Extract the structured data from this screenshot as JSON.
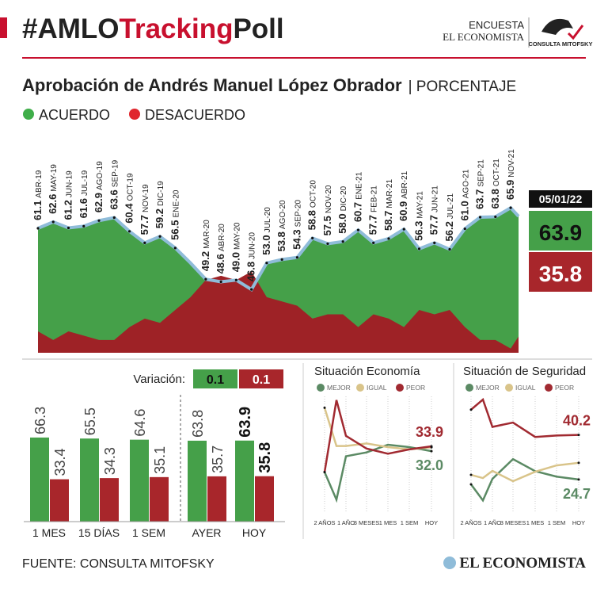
{
  "header": {
    "hashtag": "#AMLO",
    "highlight": "Tracking",
    "suffix": "Poll",
    "survey": "ENCUESTA",
    "publisher": "EL ECONOMISTA",
    "pollster": "CONSULTA MITOFSKY"
  },
  "chart_data": [
    {
      "type": "area",
      "title": "Aprobación de Andrés Manuel López Obrador",
      "subtitle": "| PORCENTAJE",
      "categories": [
        "ABR-19",
        "MAY-19",
        "JUN-19",
        "JUL-19",
        "AGO-19",
        "SEP-19",
        "OCT-19",
        "NOV-19",
        "DIC-19",
        "ENE-20",
        null,
        "MAR-20",
        "ABR-20",
        "MAY-20",
        "JUN-20",
        "JUL-20",
        "AGO-20",
        "SEP-20",
        "OCT-20",
        "NOV-20",
        "DIC-20",
        "ENE-21",
        "FEB-21",
        "MAR-21",
        "ABR-21",
        "MAY-21",
        "JUN-21",
        "JUL-21",
        "AGO-21",
        "SEP-21",
        "OCT-21",
        "NOV-21",
        "05/01/22"
      ],
      "series": [
        {
          "name": "ACUERDO",
          "color": "#45a049",
          "values": [
            61.1,
            62.6,
            61.2,
            61.6,
            62.9,
            63.6,
            60.4,
            57.7,
            59.2,
            56.5,
            53,
            49.2,
            48.6,
            49.0,
            46.8,
            53.0,
            53.8,
            54.3,
            58.8,
            57.5,
            58.0,
            60.7,
            57.7,
            58.7,
            60.9,
            56.3,
            57.7,
            56.2,
            61.0,
            63.7,
            63.8,
            65.9,
            63.9
          ],
          "value_labels": [
            "61.1",
            "62.6",
            "61.2",
            "61.6",
            "62.9",
            "63.6",
            "60.4",
            "57.7",
            "59.2",
            "56.5",
            null,
            "49.2",
            "48.6",
            "49.0",
            "46.8",
            "53.0",
            "53.8",
            "54.3",
            "58.8",
            "57.5",
            "58.0",
            "60.7",
            "57.7",
            "58.7",
            "60.9",
            "56.3",
            "57.7",
            "56.2",
            "61.0",
            "63.7",
            "63.8",
            "65.9",
            "63.9"
          ]
        },
        {
          "name": "DESACUERDO",
          "color": "#9e2226",
          "values": [
            37,
            35,
            37,
            36,
            35,
            35,
            38,
            40,
            39,
            42,
            45,
            49,
            50,
            49,
            51,
            45,
            44,
            43,
            40,
            41,
            41,
            38,
            41,
            40,
            38,
            42,
            41,
            42,
            38,
            35,
            35,
            33,
            35.8
          ]
        }
      ],
      "line_color": "#8fbcd9",
      "ylim": [
        32,
        70
      ]
    },
    {
      "type": "bar",
      "variation_label": "Variación:",
      "variation": [
        0.1,
        0.1
      ],
      "categories": [
        "1 MES",
        "15 DÍAS",
        "1 SEM",
        "AYER",
        "HOY"
      ],
      "series": [
        {
          "name": "ACUERDO",
          "color": "#45a049",
          "values": [
            66.3,
            65.5,
            64.6,
            63.8,
            63.9
          ]
        },
        {
          "name": "DESACUERDO",
          "color": "#a8262b",
          "values": [
            33.4,
            34.3,
            35.1,
            35.7,
            35.8
          ]
        }
      ],
      "ylim": [
        0,
        70
      ]
    },
    {
      "type": "line",
      "title": "Situación Economía",
      "categories": [
        "2 AÑOS",
        null,
        "1 AÑO",
        "3 MESES",
        "1 MES",
        "1 SEM",
        "HOY"
      ],
      "series": [
        {
          "name": "MEJOR",
          "color": "#5b8a64",
          "values": [
            23.8,
            13,
            30,
            31.5,
            34.5,
            33.6,
            32.0
          ],
          "end_label": "32.0"
        },
        {
          "name": "IGUAL",
          "color": "#d9c48a",
          "values": [
            49,
            34,
            34,
            35,
            33.6,
            32.7,
            33.5
          ]
        },
        {
          "name": "PEOR",
          "color": "#a12a31",
          "values": [
            23.8,
            52,
            38,
            33,
            31,
            32.7,
            33.9
          ],
          "end_label": "33.9"
        }
      ],
      "ylim": [
        10,
        55
      ]
    },
    {
      "type": "line",
      "title": "Situación de Seguridad",
      "categories": [
        "2 AÑOS",
        null,
        "1 AÑO",
        "3 MESES",
        "1 MES",
        "1 SEM",
        "HOY"
      ],
      "series": [
        {
          "name": "MEJOR",
          "color": "#5b8a64",
          "values": [
            23,
            17.4,
            24.9,
            31.8,
            27.6,
            25.7,
            24.7
          ],
          "end_label": "24.7"
        },
        {
          "name": "IGUAL",
          "color": "#d9c48a",
          "values": [
            26.3,
            25.2,
            27.7,
            24.1,
            27.4,
            29.6,
            30.5
          ]
        },
        {
          "name": "PEOR",
          "color": "#a12a31",
          "values": [
            49,
            52.5,
            43,
            44.5,
            39.5,
            40,
            40.2
          ],
          "end_label": "40.2"
        }
      ],
      "ylim": [
        15,
        55
      ]
    }
  ],
  "footer": {
    "source": "FUENTE: CONSULTA MITOFSKY",
    "logo": "EL ECONOMISTA"
  }
}
